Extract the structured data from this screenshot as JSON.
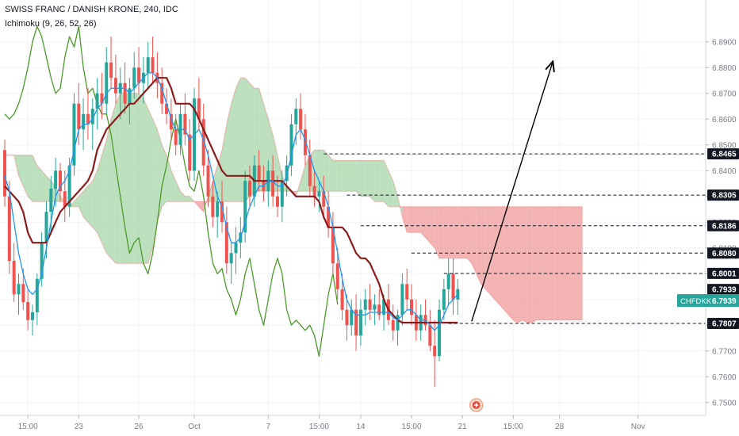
{
  "header": {
    "title": "SWISS FRANC / DANISH KRONE, 240, IDC",
    "indicator": "Ichimoku (9, 26, 52, 26)"
  },
  "chart_data": {
    "type": "candlestick",
    "symbol_tag": "CHFDKK",
    "last_price": "6.7939",
    "ylim": [
      6.745,
      6.905
    ],
    "y_ticks": [
      "6.7500",
      "6.7600",
      "6.7700",
      "6.7800",
      "6.7900",
      "6.8000",
      "6.8100",
      "6.8200",
      "6.8300",
      "6.8400",
      "6.8500",
      "6.8600",
      "6.8700",
      "6.8800",
      "6.8900"
    ],
    "y_tick_values": [
      6.75,
      6.76,
      6.77,
      6.78,
      6.79,
      6.8,
      6.81,
      6.82,
      6.83,
      6.84,
      6.85,
      6.86,
      6.87,
      6.88,
      6.89
    ],
    "x_ticks": [
      "15:00",
      "23",
      "26",
      "Oct",
      "7",
      "15:00",
      "14",
      "15:00",
      "21",
      "15:00",
      "28",
      "Nov"
    ],
    "x_tick_bars": [
      5,
      16,
      29,
      41,
      57,
      68,
      77,
      88,
      99,
      110,
      120,
      137
    ],
    "price_levels": [
      {
        "label": "6.8465",
        "value": 6.8465
      },
      {
        "label": "6.8305",
        "value": 6.8305
      },
      {
        "label": "6.8186",
        "value": 6.8186
      },
      {
        "label": "6.8080",
        "value": 6.808
      },
      {
        "label": "6.8001",
        "value": 6.8001
      },
      {
        "label": "6.7939",
        "value": 6.7939
      },
      {
        "label": "6.7807",
        "value": 6.7807
      }
    ],
    "candles": [
      [
        6.848,
        6.852,
        6.826,
        6.83
      ],
      [
        6.83,
        6.836,
        6.8,
        6.805
      ],
      [
        6.805,
        6.812,
        6.789,
        6.792
      ],
      [
        6.792,
        6.8,
        6.784,
        6.796
      ],
      [
        6.796,
        6.802,
        6.786,
        6.789
      ],
      [
        6.789,
        6.794,
        6.778,
        6.782
      ],
      [
        6.782,
        6.788,
        6.776,
        6.785
      ],
      [
        6.785,
        6.8,
        6.78,
        6.798
      ],
      [
        6.798,
        6.816,
        6.795,
        6.812
      ],
      [
        6.812,
        6.828,
        6.806,
        6.824
      ],
      [
        6.824,
        6.838,
        6.815,
        6.833
      ],
      [
        6.833,
        6.845,
        6.826,
        6.84
      ],
      [
        6.84,
        6.843,
        6.828,
        6.832
      ],
      [
        6.832,
        6.84,
        6.82,
        6.826
      ],
      [
        6.826,
        6.845,
        6.822,
        6.842
      ],
      [
        6.842,
        6.87,
        6.838,
        6.866
      ],
      [
        6.866,
        6.874,
        6.85,
        6.856
      ],
      [
        6.856,
        6.868,
        6.848,
        6.862
      ],
      [
        6.862,
        6.872,
        6.852,
        6.858
      ],
      [
        6.858,
        6.868,
        6.848,
        6.864
      ],
      [
        6.864,
        6.876,
        6.856,
        6.87
      ],
      [
        6.87,
        6.878,
        6.86,
        6.866
      ],
      [
        6.866,
        6.888,
        6.862,
        6.882
      ],
      [
        6.882,
        6.892,
        6.872,
        6.876
      ],
      [
        6.876,
        6.885,
        6.866,
        6.87
      ],
      [
        6.87,
        6.88,
        6.86,
        6.874
      ],
      [
        6.874,
        6.882,
        6.862,
        6.866
      ],
      [
        6.866,
        6.876,
        6.858,
        6.872
      ],
      [
        6.872,
        6.886,
        6.868,
        6.88
      ],
      [
        6.88,
        6.888,
        6.87,
        6.874
      ],
      [
        6.874,
        6.884,
        6.866,
        6.878
      ],
      [
        6.878,
        6.89,
        6.872,
        6.884
      ],
      [
        6.884,
        6.892,
        6.874,
        6.878
      ],
      [
        6.878,
        6.886,
        6.868,
        6.874
      ],
      [
        6.874,
        6.88,
        6.862,
        6.866
      ],
      [
        6.866,
        6.872,
        6.858,
        6.862
      ],
      [
        6.862,
        6.868,
        6.852,
        6.856
      ],
      [
        6.856,
        6.862,
        6.846,
        6.85
      ],
      [
        6.85,
        6.866,
        6.846,
        6.862
      ],
      [
        6.862,
        6.87,
        6.85,
        6.854
      ],
      [
        6.854,
        6.86,
        6.836,
        6.84
      ],
      [
        6.84,
        6.872,
        6.836,
        6.868
      ],
      [
        6.868,
        6.876,
        6.856,
        6.86
      ],
      [
        6.86,
        6.866,
        6.838,
        6.842
      ],
      [
        6.842,
        6.848,
        6.826,
        6.83
      ],
      [
        6.83,
        6.836,
        6.818,
        6.822
      ],
      [
        6.822,
        6.832,
        6.814,
        6.828
      ],
      [
        6.828,
        6.836,
        6.816,
        6.82
      ],
      [
        6.82,
        6.826,
        6.8,
        6.804
      ],
      [
        6.804,
        6.812,
        6.796,
        6.808
      ],
      [
        6.808,
        6.818,
        6.8,
        6.812
      ],
      [
        6.812,
        6.822,
        6.806,
        6.816
      ],
      [
        6.816,
        6.84,
        6.812,
        6.836
      ],
      [
        6.836,
        6.842,
        6.826,
        6.83
      ],
      [
        6.83,
        6.846,
        6.826,
        6.842
      ],
      [
        6.842,
        6.848,
        6.832,
        6.836
      ],
      [
        6.836,
        6.842,
        6.828,
        6.832
      ],
      [
        6.832,
        6.844,
        6.826,
        6.84
      ],
      [
        6.84,
        6.846,
        6.826,
        6.83
      ],
      [
        6.83,
        6.838,
        6.822,
        6.826
      ],
      [
        6.826,
        6.84,
        6.82,
        6.836
      ],
      [
        6.836,
        6.846,
        6.83,
        6.842
      ],
      [
        6.842,
        6.862,
        6.838,
        6.858
      ],
      [
        6.858,
        6.868,
        6.85,
        6.864
      ],
      [
        6.864,
        6.87,
        6.852,
        6.856
      ],
      [
        6.856,
        6.862,
        6.842,
        6.846
      ],
      [
        6.846,
        6.852,
        6.83,
        6.834
      ],
      [
        6.834,
        6.84,
        6.826,
        6.83
      ],
      [
        6.83,
        6.836,
        6.824,
        6.832
      ],
      [
        6.832,
        6.838,
        6.822,
        6.826
      ],
      [
        6.826,
        6.832,
        6.814,
        6.818
      ],
      [
        6.818,
        6.824,
        6.8,
        6.804
      ],
      [
        6.804,
        6.81,
        6.79,
        6.794
      ],
      [
        6.794,
        6.8,
        6.782,
        6.786
      ],
      [
        6.786,
        6.792,
        6.774,
        6.78
      ],
      [
        6.78,
        6.79,
        6.776,
        6.786
      ],
      [
        6.786,
        6.792,
        6.77,
        6.776
      ],
      [
        6.776,
        6.79,
        6.772,
        6.786
      ],
      [
        6.786,
        6.794,
        6.78,
        6.79
      ],
      [
        6.79,
        6.796,
        6.782,
        6.786
      ],
      [
        6.786,
        6.792,
        6.78,
        6.788
      ],
      [
        6.788,
        6.794,
        6.782,
        6.784
      ],
      [
        6.784,
        6.792,
        6.778,
        6.79
      ],
      [
        6.79,
        6.796,
        6.78,
        6.782
      ],
      [
        6.782,
        6.788,
        6.774,
        6.778
      ],
      [
        6.778,
        6.786,
        6.772,
        6.784
      ],
      [
        6.784,
        6.8,
        6.78,
        6.796
      ],
      [
        6.796,
        6.802,
        6.786,
        6.79
      ],
      [
        6.79,
        6.796,
        6.78,
        6.784
      ],
      [
        6.784,
        6.79,
        6.774,
        6.778
      ],
      [
        6.778,
        6.788,
        6.774,
        6.784
      ],
      [
        6.784,
        6.79,
        6.778,
        6.78
      ],
      [
        6.78,
        6.786,
        6.77,
        6.772
      ],
      [
        6.772,
        6.782,
        6.756,
        6.768
      ],
      [
        6.768,
        6.79,
        6.766,
        6.786
      ],
      [
        6.786,
        6.798,
        6.782,
        6.794
      ],
      [
        6.794,
        6.806,
        6.788,
        6.8
      ],
      [
        6.8,
        6.806,
        6.784,
        6.79
      ],
      [
        6.79,
        6.798,
        6.784,
        6.794
      ]
    ],
    "tenkan": [
      6.838,
      6.832,
      6.82,
      6.808,
      6.8,
      6.794,
      6.792,
      6.794,
      6.8,
      6.81,
      6.82,
      6.83,
      6.834,
      6.836,
      6.84,
      6.848,
      6.856,
      6.858,
      6.858,
      6.86,
      6.864,
      6.866,
      6.87,
      6.872,
      6.872,
      6.872,
      6.872,
      6.87,
      6.872,
      6.874,
      6.876,
      6.878,
      6.878,
      6.876,
      6.872,
      6.866,
      6.86,
      6.856,
      6.856,
      6.856,
      6.852,
      6.854,
      6.856,
      6.852,
      6.846,
      6.838,
      6.83,
      6.826,
      6.818,
      6.812,
      6.812,
      6.814,
      6.82,
      6.826,
      6.83,
      6.834,
      6.834,
      6.836,
      6.836,
      6.834,
      6.834,
      6.838,
      6.846,
      6.854,
      6.856,
      6.852,
      6.846,
      6.84,
      6.836,
      6.832,
      6.826,
      6.818,
      6.808,
      6.798,
      6.79,
      6.786,
      6.784,
      6.784,
      6.784,
      6.785,
      6.785,
      6.785,
      6.785,
      6.785,
      6.783,
      6.782,
      6.784,
      6.786,
      6.786,
      6.784,
      6.782,
      6.782,
      6.78,
      6.778,
      6.78,
      6.784,
      6.788,
      6.79,
      6.792
    ],
    "kijun": [
      6.834,
      6.832,
      6.83,
      6.828,
      6.824,
      6.816,
      6.812,
      6.812,
      6.812,
      6.812,
      6.816,
      6.82,
      6.824,
      6.826,
      6.828,
      6.83,
      6.832,
      6.834,
      6.836,
      6.84,
      6.848,
      6.852,
      6.856,
      6.858,
      6.86,
      6.862,
      6.864,
      6.866,
      6.866,
      6.868,
      6.87,
      6.872,
      6.874,
      6.876,
      6.876,
      6.876,
      6.872,
      6.866,
      6.866,
      6.866,
      6.866,
      6.864,
      6.86,
      6.856,
      6.852,
      6.848,
      6.844,
      6.84,
      6.838,
      6.838,
      6.838,
      6.838,
      6.838,
      6.838,
      6.836,
      6.836,
      6.836,
      6.836,
      6.836,
      6.836,
      6.836,
      6.834,
      6.832,
      6.83,
      6.83,
      6.83,
      6.83,
      6.83,
      6.828,
      6.822,
      6.818,
      6.818,
      6.818,
      6.818,
      6.816,
      6.812,
      6.808,
      6.806,
      6.806,
      6.804,
      6.8,
      6.796,
      6.79,
      6.786,
      6.784,
      6.782,
      6.781,
      6.781,
      6.781,
      6.781,
      6.781,
      6.781,
      6.781,
      6.781,
      6.781,
      6.781,
      6.781,
      6.781,
      6.781
    ],
    "chikou": [
      6.862,
      6.86,
      6.862,
      6.866,
      6.872,
      6.88,
      6.89,
      6.896,
      6.892,
      6.884,
      6.876,
      6.87,
      6.872,
      6.884,
      6.892,
      6.888,
      6.896,
      6.88,
      6.87,
      6.872,
      6.866,
      6.862,
      6.862,
      6.854,
      6.842,
      6.83,
      6.818,
      6.808,
      6.812,
      6.814,
      6.804,
      6.8,
      6.808,
      6.82,
      6.834,
      6.842,
      6.852,
      6.86,
      6.852,
      6.842,
      6.834,
      6.832,
      6.84,
      6.83,
      6.816,
      6.804,
      6.8,
      6.802,
      6.794,
      6.79,
      6.784,
      6.79,
      6.8,
      6.806,
      6.796,
      6.786,
      6.78,
      6.79,
      6.8,
      6.806,
      6.8,
      6.786,
      6.78,
      6.782,
      6.78,
      6.778,
      6.78,
      6.776,
      6.768,
      6.78,
      6.792,
      6.8,
      6.788
    ],
    "cloud_a": [
      6.846,
      6.846,
      6.846,
      6.846,
      6.846,
      6.846,
      6.846,
      6.842,
      6.84,
      6.838,
      6.836,
      6.834,
      6.83,
      6.828,
      6.826,
      6.828,
      6.83,
      6.832,
      6.834,
      6.836,
      6.84,
      6.846,
      6.852,
      6.86,
      6.866,
      6.87,
      6.87,
      6.87,
      6.87,
      6.87,
      6.868,
      6.864,
      6.86,
      6.856,
      6.85,
      6.846,
      6.84,
      6.836,
      6.832,
      6.83,
      6.83,
      6.828,
      6.826,
      6.824,
      6.83,
      6.836,
      6.842,
      6.848,
      6.858,
      6.866,
      6.872,
      6.876,
      6.876,
      6.874,
      6.872,
      6.872,
      6.866,
      6.86,
      6.854,
      6.846,
      6.838,
      6.834,
      6.832,
      6.83,
      6.836,
      6.842,
      6.846,
      6.848,
      6.848,
      6.848,
      6.846,
      6.844,
      6.844,
      6.844,
      6.844,
      6.844,
      6.844,
      6.844,
      6.844,
      6.844,
      6.844,
      6.844,
      6.844,
      6.84,
      6.836,
      6.83,
      6.822,
      6.816,
      6.816,
      6.816,
      6.816,
      6.814,
      6.812,
      6.81,
      6.806,
      6.806,
      6.806,
      6.806,
      6.806,
      6.806,
      6.806,
      6.804,
      6.8,
      6.796,
      6.794,
      6.792,
      6.79,
      6.788,
      6.786,
      6.784,
      6.782,
      6.781,
      6.782,
      6.781,
      6.781,
      6.782,
      6.782,
      6.782,
      6.782,
      6.782,
      6.782,
      6.782,
      6.782,
      6.782,
      6.782,
      6.782
    ],
    "cloud_b": [
      6.846,
      6.846,
      6.846,
      6.838,
      6.834,
      6.83,
      6.828,
      6.828,
      6.828,
      6.828,
      6.828,
      6.828,
      6.828,
      6.828,
      6.826,
      6.826,
      6.826,
      6.822,
      6.82,
      6.818,
      6.816,
      6.812,
      6.808,
      6.806,
      6.804,
      6.804,
      6.804,
      6.804,
      6.804,
      6.804,
      6.804,
      6.804,
      6.81,
      6.82,
      6.826,
      6.828,
      6.828,
      6.828,
      6.828,
      6.828,
      6.828,
      6.828,
      6.828,
      6.828,
      6.828,
      6.828,
      6.828,
      6.828,
      6.828,
      6.828,
      6.828,
      6.828,
      6.828,
      6.83,
      6.832,
      6.832,
      6.832,
      6.832,
      6.832,
      6.832,
      6.832,
      6.832,
      6.832,
      6.832,
      6.832,
      6.832,
      6.832,
      6.832,
      6.832,
      6.832,
      6.832,
      6.832,
      6.832,
      6.832,
      6.832,
      6.832,
      6.832,
      6.83,
      6.83,
      6.83,
      6.828,
      6.828,
      6.828,
      6.826,
      6.826,
      6.826,
      6.826,
      6.826,
      6.826,
      6.826,
      6.826,
      6.826,
      6.826,
      6.826,
      6.826,
      6.826,
      6.826,
      6.826,
      6.826,
      6.826,
      6.826,
      6.826,
      6.826,
      6.826,
      6.826,
      6.826,
      6.826,
      6.826,
      6.826,
      6.826,
      6.826,
      6.826,
      6.826,
      6.826,
      6.826,
      6.826,
      6.826,
      6.826,
      6.826,
      6.826,
      6.826,
      6.826,
      6.826,
      6.826,
      6.826,
      6.826
    ],
    "colors": {
      "bull": "#26a69a",
      "bear": "#ef5350",
      "tenkan": "#2196f3",
      "kijun": "#8b1a1a",
      "chikou": "#4c9a2a",
      "cloud_bull": "#a5d6a7",
      "cloud_bear": "#ef9a9a",
      "tag": "#26a69a"
    }
  }
}
